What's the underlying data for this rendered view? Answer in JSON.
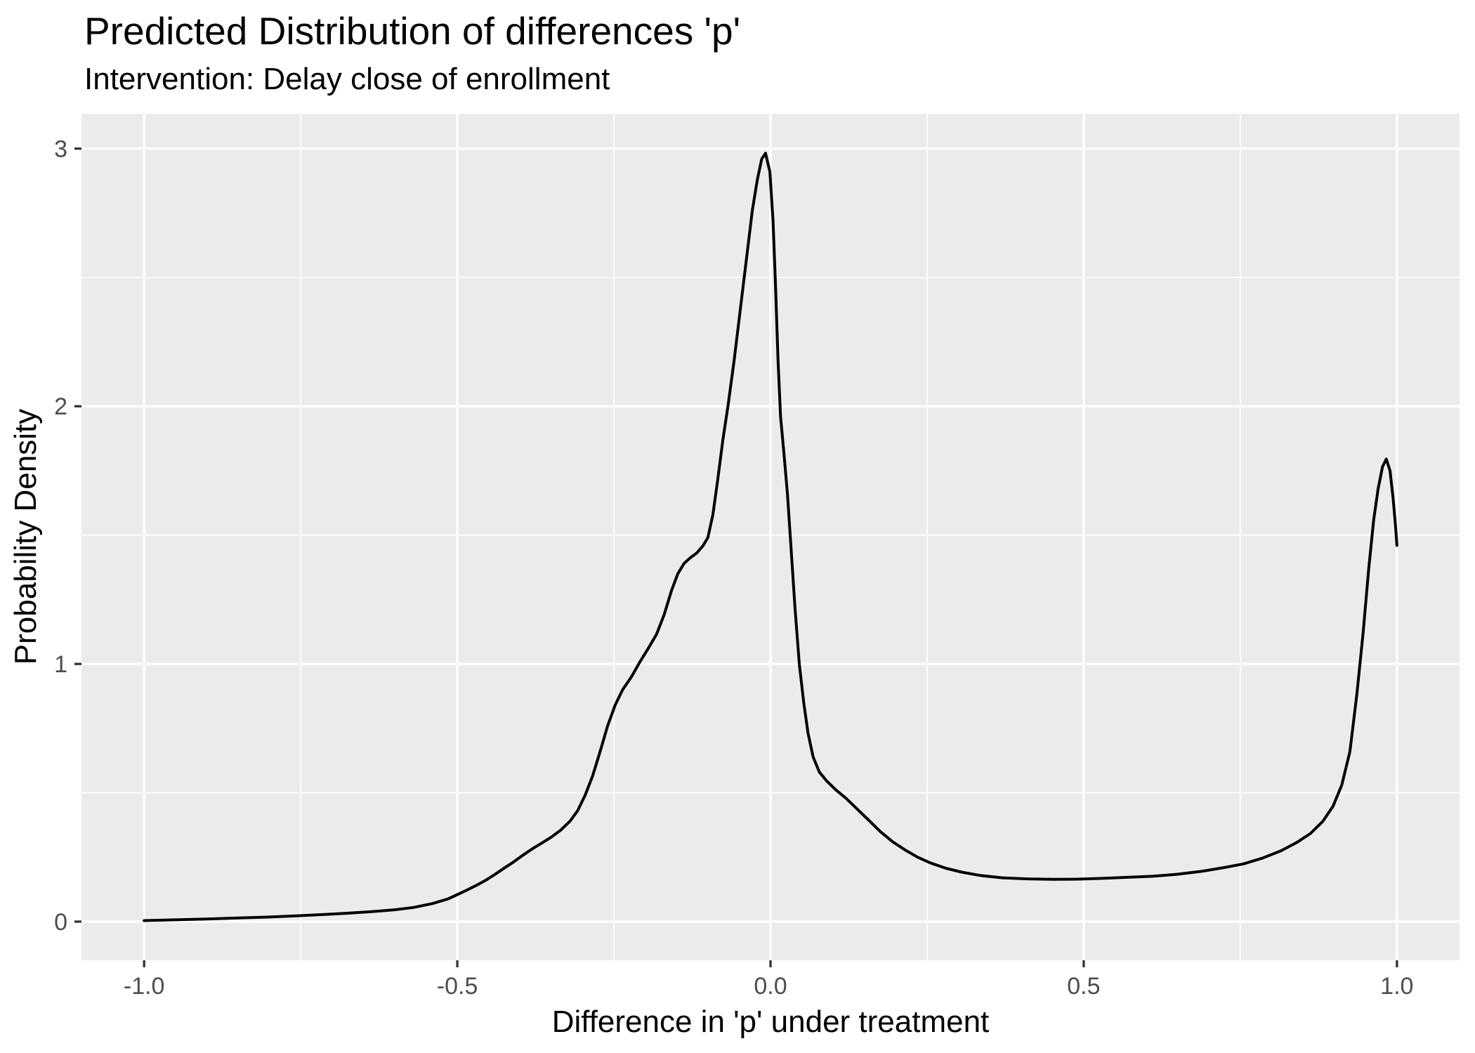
{
  "chart_data": {
    "type": "line",
    "title": "Predicted Distribution of differences 'p'",
    "subtitle": "Intervention: Delay close of enrollment",
    "xlabel": "Difference in 'p' under treatment",
    "ylabel": "Probability Density",
    "xlim": [
      -1.1,
      1.1
    ],
    "ylim": [
      -0.15,
      3.135
    ],
    "grid": true,
    "legend_position": "none",
    "x_major_ticks": {
      "values": [
        -1.0,
        -0.5,
        0.0,
        0.5,
        1.0
      ],
      "labels": [
        "-1.0",
        "-0.5",
        "0.0",
        "0.5",
        "1.0"
      ]
    },
    "x_minor_ticks": [
      -0.75,
      -0.25,
      0.25,
      0.75
    ],
    "y_major_ticks": {
      "values": [
        0,
        1,
        2,
        3
      ],
      "labels": [
        "0",
        "1",
        "2",
        "3"
      ]
    },
    "y_minor_ticks": [
      0.5,
      1.5,
      2.5
    ],
    "colors": {
      "panel_bg": "#EBEBEB",
      "grid": "#FFFFFF",
      "line": "#000000",
      "tick_label": "#4D4D4D",
      "tick_mark": "#333333",
      "text": "#000000"
    },
    "series": [
      {
        "name": "density",
        "points": [
          [
            -1.0,
            0.004
          ],
          [
            -0.95,
            0.007
          ],
          [
            -0.9,
            0.01
          ],
          [
            -0.85,
            0.014
          ],
          [
            -0.8,
            0.018
          ],
          [
            -0.76,
            0.022
          ],
          [
            -0.72,
            0.027
          ],
          [
            -0.68,
            0.032
          ],
          [
            -0.64,
            0.038
          ],
          [
            -0.6,
            0.046
          ],
          [
            -0.57,
            0.055
          ],
          [
            -0.54,
            0.07
          ],
          [
            -0.515,
            0.088
          ],
          [
            -0.5,
            0.105
          ],
          [
            -0.485,
            0.122
          ],
          [
            -0.47,
            0.14
          ],
          [
            -0.455,
            0.16
          ],
          [
            -0.44,
            0.183
          ],
          [
            -0.425,
            0.208
          ],
          [
            -0.41,
            0.232
          ],
          [
            -0.395,
            0.258
          ],
          [
            -0.38,
            0.283
          ],
          [
            -0.365,
            0.305
          ],
          [
            -0.35,
            0.328
          ],
          [
            -0.335,
            0.355
          ],
          [
            -0.32,
            0.39
          ],
          [
            -0.308,
            0.43
          ],
          [
            -0.296,
            0.49
          ],
          [
            -0.284,
            0.565
          ],
          [
            -0.272,
            0.66
          ],
          [
            -0.26,
            0.76
          ],
          [
            -0.248,
            0.84
          ],
          [
            -0.236,
            0.9
          ],
          [
            -0.222,
            0.95
          ],
          [
            -0.208,
            1.01
          ],
          [
            -0.194,
            1.065
          ],
          [
            -0.182,
            1.115
          ],
          [
            -0.17,
            1.19
          ],
          [
            -0.158,
            1.285
          ],
          [
            -0.148,
            1.35
          ],
          [
            -0.138,
            1.39
          ],
          [
            -0.128,
            1.412
          ],
          [
            -0.118,
            1.43
          ],
          [
            -0.108,
            1.458
          ],
          [
            -0.1,
            1.49
          ],
          [
            -0.092,
            1.58
          ],
          [
            -0.084,
            1.72
          ],
          [
            -0.076,
            1.87
          ],
          [
            -0.068,
            2.0
          ],
          [
            -0.058,
            2.18
          ],
          [
            -0.048,
            2.38
          ],
          [
            -0.038,
            2.58
          ],
          [
            -0.029,
            2.76
          ],
          [
            -0.021,
            2.88
          ],
          [
            -0.014,
            2.96
          ],
          [
            -0.008,
            2.982
          ],
          [
            -0.001,
            2.91
          ],
          [
            0.004,
            2.72
          ],
          [
            0.008,
            2.47
          ],
          [
            0.012,
            2.18
          ],
          [
            0.016,
            1.96
          ],
          [
            0.021,
            1.83
          ],
          [
            0.027,
            1.66
          ],
          [
            0.032,
            1.48
          ],
          [
            0.039,
            1.22
          ],
          [
            0.046,
            1.0
          ],
          [
            0.053,
            0.85
          ],
          [
            0.06,
            0.73
          ],
          [
            0.068,
            0.64
          ],
          [
            0.078,
            0.58
          ],
          [
            0.09,
            0.545
          ],
          [
            0.105,
            0.51
          ],
          [
            0.12,
            0.48
          ],
          [
            0.137,
            0.44
          ],
          [
            0.155,
            0.398
          ],
          [
            0.175,
            0.35
          ],
          [
            0.195,
            0.31
          ],
          [
            0.215,
            0.278
          ],
          [
            0.235,
            0.25
          ],
          [
            0.255,
            0.228
          ],
          [
            0.28,
            0.207
          ],
          [
            0.305,
            0.192
          ],
          [
            0.335,
            0.179
          ],
          [
            0.37,
            0.17
          ],
          [
            0.41,
            0.166
          ],
          [
            0.45,
            0.164
          ],
          [
            0.49,
            0.165
          ],
          [
            0.53,
            0.168
          ],
          [
            0.57,
            0.172
          ],
          [
            0.61,
            0.176
          ],
          [
            0.65,
            0.184
          ],
          [
            0.69,
            0.196
          ],
          [
            0.725,
            0.21
          ],
          [
            0.755,
            0.224
          ],
          [
            0.785,
            0.246
          ],
          [
            0.815,
            0.275
          ],
          [
            0.84,
            0.307
          ],
          [
            0.862,
            0.342
          ],
          [
            0.882,
            0.39
          ],
          [
            0.898,
            0.448
          ],
          [
            0.912,
            0.53
          ],
          [
            0.925,
            0.66
          ],
          [
            0.936,
            0.88
          ],
          [
            0.946,
            1.12
          ],
          [
            0.955,
            1.37
          ],
          [
            0.963,
            1.56
          ],
          [
            0.97,
            1.68
          ],
          [
            0.977,
            1.765
          ],
          [
            0.983,
            1.795
          ],
          [
            0.989,
            1.75
          ],
          [
            0.994,
            1.64
          ],
          [
            0.998,
            1.53
          ],
          [
            1.0,
            1.46
          ]
        ]
      }
    ]
  }
}
